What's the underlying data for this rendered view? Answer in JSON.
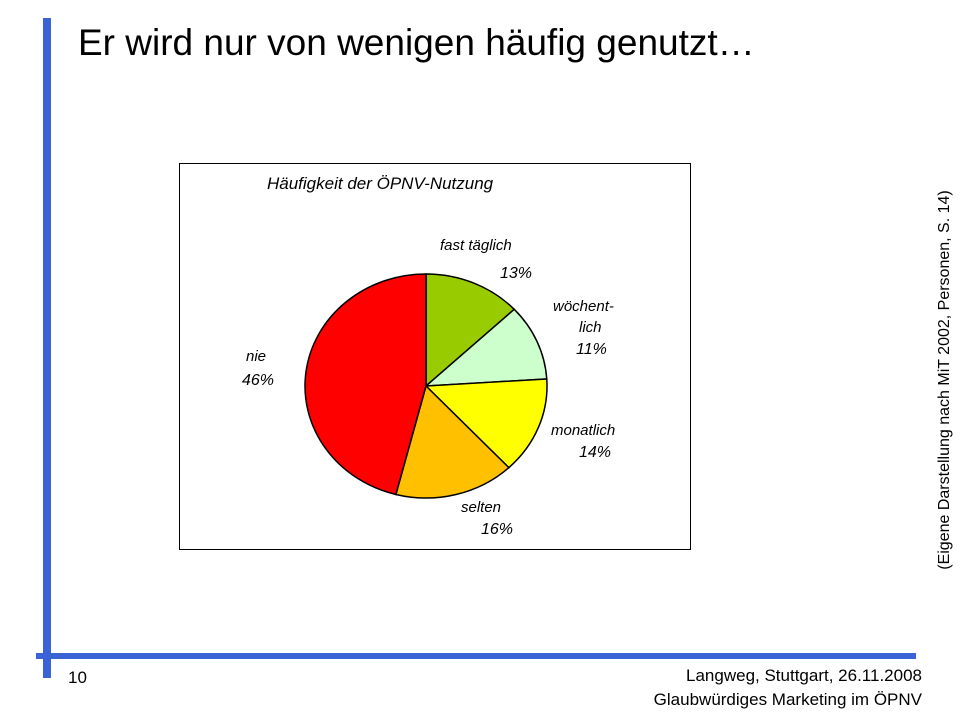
{
  "slide": {
    "title": "Er wird nur von wenigen häufig genutzt…",
    "side_note": "(Eigene Darstellung nach MiT 2002, Personen, S. 14)",
    "page_number": "10",
    "footer_line1": "Langweg, Stuttgart, 26.11.2008",
    "footer_line2": "Glaubwürdiges Marketing im ÖPNV",
    "accent_color": "#3a63d6"
  },
  "chart_data": {
    "type": "pie",
    "title": "Häufigkeit der ÖPNV-Nutzung",
    "unit": "%",
    "start": "12 o'clock, clockwise",
    "slices": [
      {
        "name": "fast täglich",
        "value": 13,
        "value_label": "13%",
        "color": "#99cc00"
      },
      {
        "name": "wöchent-lich",
        "name_line1": "wöchent-",
        "name_line2": "lich",
        "value": 11,
        "value_label": "11%",
        "color": "#ccffcc"
      },
      {
        "name": "monatlich",
        "value": 14,
        "value_label": "14%",
        "color": "#ffff00"
      },
      {
        "name": "selten",
        "value": 16,
        "value_label": "16%",
        "color": "#ffc000"
      },
      {
        "name": "nie",
        "value": 46,
        "value_label": "46%",
        "color": "#ff0000"
      }
    ]
  }
}
